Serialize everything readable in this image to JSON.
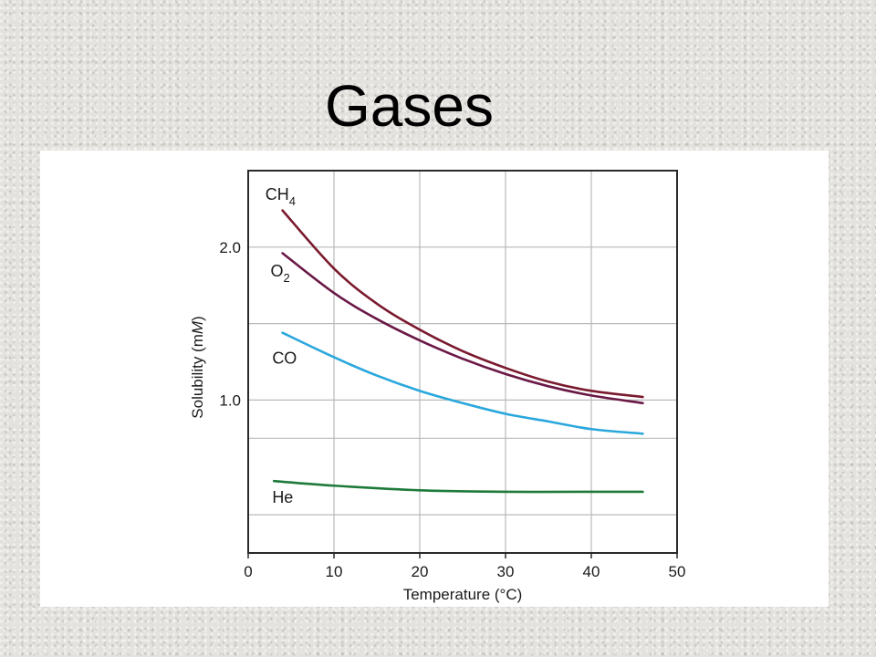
{
  "slide": {
    "title": "Gases"
  },
  "chart_data": {
    "type": "line",
    "title": "",
    "xlabel": "Temperature (°C)",
    "ylabel_parts": [
      "Solubility (m",
      "M",
      ")"
    ],
    "xlim": [
      0,
      50
    ],
    "ylim": [
      0,
      2.5
    ],
    "x_ticks": [
      {
        "value": 0,
        "label": "0"
      },
      {
        "value": 10,
        "label": "10"
      },
      {
        "value": 20,
        "label": "20"
      },
      {
        "value": 30,
        "label": "30"
      },
      {
        "value": 40,
        "label": "40"
      },
      {
        "value": 50,
        "label": "50"
      }
    ],
    "y_ticks": [
      {
        "value": 1.0,
        "label": "1.0"
      },
      {
        "value": 2.0,
        "label": "2.0"
      }
    ],
    "x_grid": [
      10,
      20,
      30,
      40
    ],
    "y_grid": [
      0.25,
      0.75,
      1.0,
      1.5,
      2.0
    ],
    "grid": true,
    "series": [
      {
        "name": "CH₄",
        "label_base": "CH",
        "label_sub": "4",
        "color": "#7a1a2e",
        "label_at": [
          2,
          2.35
        ],
        "x": [
          4,
          10,
          15,
          20,
          25,
          30,
          35,
          40,
          46
        ],
        "y": [
          2.24,
          1.86,
          1.63,
          1.46,
          1.32,
          1.21,
          1.12,
          1.06,
          1.02
        ]
      },
      {
        "name": "O₂",
        "label_base": "O",
        "label_sub": "2",
        "color": "#6a1845",
        "label_at": [
          2.6,
          1.85
        ],
        "x": [
          4,
          10,
          15,
          20,
          25,
          30,
          35,
          40,
          46
        ],
        "y": [
          1.96,
          1.7,
          1.53,
          1.39,
          1.27,
          1.17,
          1.09,
          1.03,
          0.98
        ]
      },
      {
        "name": "CO",
        "label_base": "CO",
        "label_sub": "",
        "color": "#2aa7dc",
        "label_at": [
          2.8,
          1.28
        ],
        "x": [
          4,
          10,
          15,
          20,
          25,
          30,
          35,
          40,
          46
        ],
        "y": [
          1.44,
          1.28,
          1.16,
          1.06,
          0.98,
          0.91,
          0.86,
          0.81,
          0.78
        ]
      },
      {
        "name": "He",
        "label_base": "He",
        "label_sub": "",
        "color": "#1e7a3a",
        "label_at": [
          2.8,
          0.37
        ],
        "x": [
          3,
          10,
          20,
          30,
          40,
          46
        ],
        "y": [
          0.47,
          0.44,
          0.41,
          0.4,
          0.4,
          0.4
        ]
      }
    ]
  }
}
